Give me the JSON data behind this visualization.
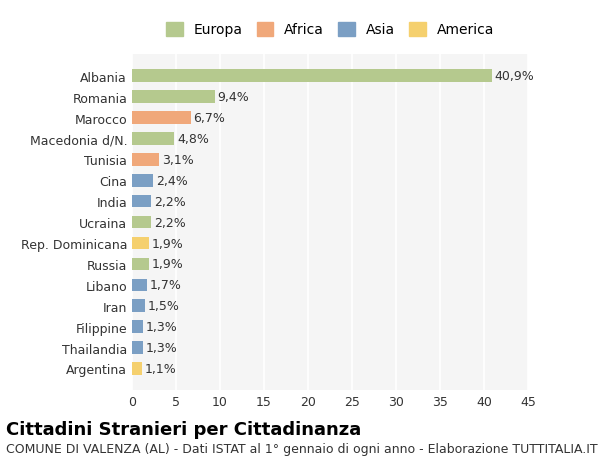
{
  "categories": [
    "Albania",
    "Romania",
    "Marocco",
    "Macedonia d/N.",
    "Tunisia",
    "Cina",
    "India",
    "Ucraina",
    "Rep. Dominicana",
    "Russia",
    "Libano",
    "Iran",
    "Filippine",
    "Thailandia",
    "Argentina"
  ],
  "values": [
    40.9,
    9.4,
    6.7,
    4.8,
    3.1,
    2.4,
    2.2,
    2.2,
    1.9,
    1.9,
    1.7,
    1.5,
    1.3,
    1.3,
    1.1
  ],
  "labels": [
    "40,9%",
    "9,4%",
    "6,7%",
    "4,8%",
    "3,1%",
    "2,4%",
    "2,2%",
    "2,2%",
    "1,9%",
    "1,9%",
    "1,7%",
    "1,5%",
    "1,3%",
    "1,3%",
    "1,1%"
  ],
  "bar_colors": [
    "#b5c98e",
    "#b5c98e",
    "#f0a87a",
    "#b5c98e",
    "#f0a87a",
    "#7b9fc4",
    "#7b9fc4",
    "#b5c98e",
    "#f5d06e",
    "#b5c98e",
    "#7b9fc4",
    "#7b9fc4",
    "#7b9fc4",
    "#7b9fc4",
    "#f5d06e"
  ],
  "legend_labels": [
    "Europa",
    "Africa",
    "Asia",
    "America"
  ],
  "legend_colors": [
    "#b5c98e",
    "#f0a87a",
    "#7b9fc4",
    "#f5d06e"
  ],
  "xlim": [
    0,
    45
  ],
  "xticks": [
    0,
    5,
    10,
    15,
    20,
    25,
    30,
    35,
    40,
    45
  ],
  "title": "Cittadini Stranieri per Cittadinanza",
  "subtitle": "COMUNE DI VALENZA (AL) - Dati ISTAT al 1° gennaio di ogni anno - Elaborazione TUTTITALIA.IT",
  "bg_color": "#ffffff",
  "plot_bg_color": "#f5f5f5",
  "grid_color": "#ffffff",
  "title_fontsize": 13,
  "subtitle_fontsize": 9,
  "tick_fontsize": 9,
  "label_fontsize": 9,
  "bar_height": 0.6
}
